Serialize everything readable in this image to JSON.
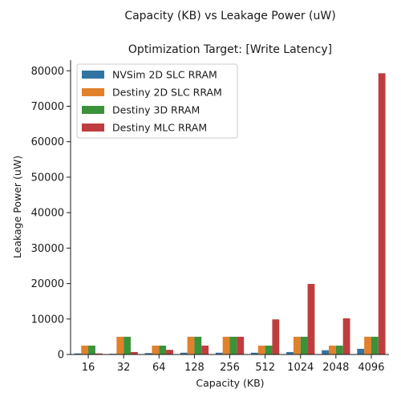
{
  "chart_data": {
    "type": "bar",
    "title": "Capacity (KB) vs Leakage Power (uW)",
    "subtitle": "Optimization Target: [Write Latency]",
    "xlabel": "Capacity (KB)",
    "ylabel": "Leakage Power (uW)",
    "categories": [
      "16",
      "32",
      "64",
      "128",
      "256",
      "512",
      "1024",
      "2048",
      "4096"
    ],
    "ylim": [
      0,
      83000
    ],
    "yticks": [
      0,
      10000,
      20000,
      30000,
      40000,
      50000,
      60000,
      70000,
      80000
    ],
    "legend_position": "top-left",
    "grid": false,
    "series": [
      {
        "name": "NVSim 2D SLC RRAM",
        "color": "#3274a1",
        "values": [
          300,
          200,
          400,
          500,
          500,
          500,
          700,
          1200,
          1600
        ]
      },
      {
        "name": "Destiny 2D SLC RRAM",
        "color": "#e1812c",
        "values": [
          2500,
          5000,
          2500,
          5000,
          5000,
          2500,
          5000,
          2500,
          5000
        ]
      },
      {
        "name": "Destiny 3D RRAM",
        "color": "#3a923a",
        "values": [
          2500,
          5000,
          2500,
          5000,
          5000,
          2500,
          5000,
          2500,
          5000
        ]
      },
      {
        "name": "Destiny MLC RRAM",
        "color": "#c03d3e",
        "values": [
          300,
          700,
          1300,
          2500,
          5000,
          9900,
          19900,
          10200,
          79300
        ]
      }
    ]
  }
}
